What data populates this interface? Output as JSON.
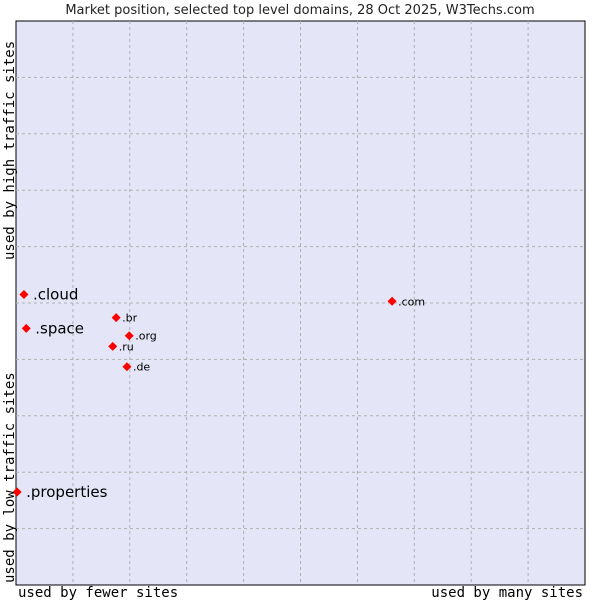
{
  "chart_data": {
    "type": "scatter",
    "title": "Market position, selected top level domains, 28 Oct 2025, W3Techs.com",
    "xlabel_left": "used by fewer sites",
    "xlabel_right": "used by many sites",
    "ylabel_bottom": "used by low traffic sites",
    "ylabel_top": "used by high traffic sites",
    "xlim": [
      0,
      10
    ],
    "ylim": [
      0,
      10
    ],
    "grid": true,
    "colors": {
      "background": "#e4e6f8",
      "point": "#ff0000",
      "grid": "#b0b0b0"
    },
    "points": [
      {
        "label": ".cloud",
        "x": 0.14,
        "y": 5.15,
        "highlight": true
      },
      {
        "label": ".space",
        "x": 0.18,
        "y": 4.55,
        "highlight": true
      },
      {
        "label": ".properties",
        "x": 0.02,
        "y": 1.65,
        "highlight": true
      },
      {
        "label": ".br",
        "x": 1.76,
        "y": 4.74,
        "highlight": false
      },
      {
        "label": ".org",
        "x": 1.99,
        "y": 4.42,
        "highlight": false
      },
      {
        "label": ".ru",
        "x": 1.7,
        "y": 4.23,
        "highlight": false
      },
      {
        "label": ".de",
        "x": 1.95,
        "y": 3.87,
        "highlight": false
      },
      {
        "label": ".com",
        "x": 6.61,
        "y": 5.03,
        "highlight": false
      }
    ]
  }
}
